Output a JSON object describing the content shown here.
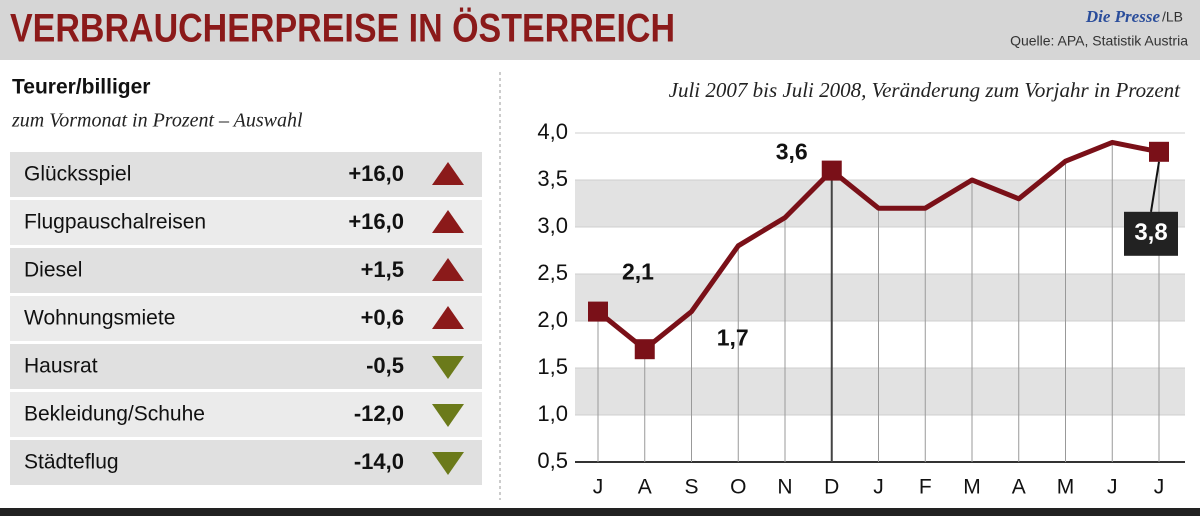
{
  "header": {
    "title": "VERBRAUCHERPREISE IN ÖSTERREICH",
    "brand": "Die Presse",
    "brand_suffix": "/LB",
    "source": "Quelle: APA, Statistik Austria"
  },
  "table": {
    "title": "Teurer/billiger",
    "subtitle": "zum Vormonat in Prozent – Auswahl",
    "up_color": "#8b1a1a",
    "down_color": "#6b7a1a",
    "rows": [
      [
        "Glücksspiel",
        "+16,0"
      ],
      [
        "Flugpauschalreisen",
        "+16,0"
      ],
      [
        "Diesel",
        "+1,5"
      ],
      [
        "Wohnungsmiete",
        "+0,6"
      ],
      [
        "Hausrat",
        "-0,5"
      ],
      [
        "Bekleidung/Schuhe",
        "-12,0"
      ],
      [
        "Städteflug",
        "-14,0"
      ]
    ]
  },
  "chart_data": {
    "type": "line",
    "subtitle": "Juli 2007 bis Juli 2008, Veränderung zum Vorjahr in Prozent",
    "categories": [
      "J",
      "A",
      "S",
      "O",
      "N",
      "D",
      "J",
      "F",
      "M",
      "A",
      "M",
      "J",
      "J"
    ],
    "values": [
      2.1,
      1.7,
      2.1,
      2.8,
      3.1,
      3.6,
      3.2,
      3.2,
      3.5,
      3.3,
      3.7,
      3.9,
      3.8
    ],
    "value_labels": [
      "2,1",
      "1,7",
      null,
      null,
      null,
      "3,6",
      null,
      null,
      null,
      null,
      null,
      null,
      "3,8"
    ],
    "color": "#7a1018",
    "ylim": [
      0.5,
      4.0
    ],
    "yticks": [
      {
        "value": 0.5,
        "label": "0,5"
      },
      {
        "value": 1.0,
        "label": "1,0"
      },
      {
        "value": 1.5,
        "label": "1,5"
      },
      {
        "value": 2.0,
        "label": "2,0"
      },
      {
        "value": 2.5,
        "label": "2,5"
      },
      {
        "value": 3.0,
        "label": "3,0"
      },
      {
        "value": 3.5,
        "label": "3,5"
      },
      {
        "value": 4.0,
        "label": "4,0"
      }
    ],
    "grid": true
  }
}
